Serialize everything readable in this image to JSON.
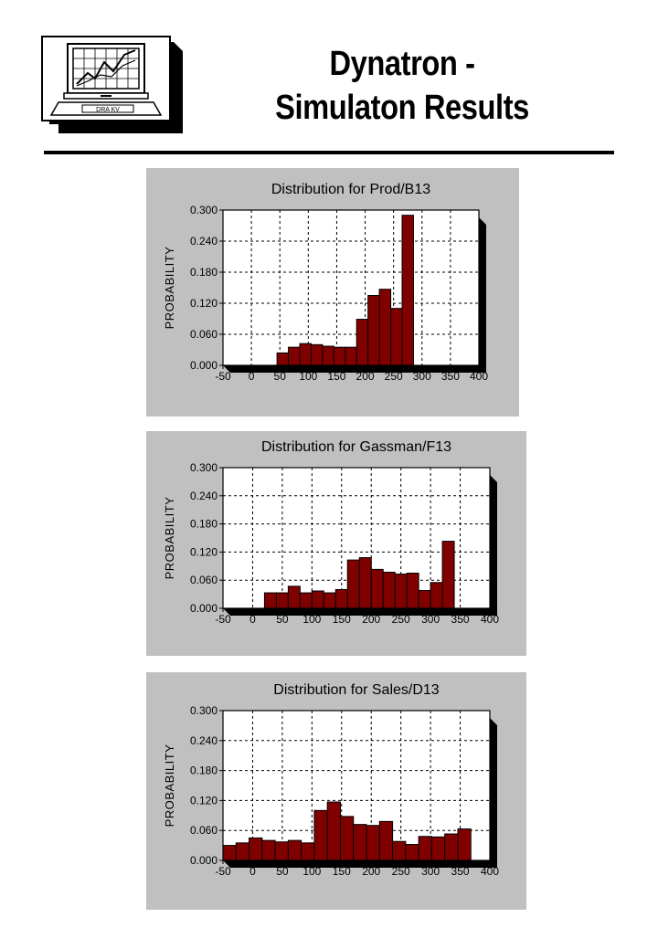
{
  "header": {
    "title_line1": "Dynatron -",
    "title_line2": "Simulaton Results",
    "logo_label": "DRA KV"
  },
  "colors": {
    "bar": "#800000",
    "panel": "#c0c0c0",
    "plot_bg": "#ffffff"
  },
  "chart_data": [
    {
      "type": "bar",
      "title": "Distribution for Prod/B13",
      "ylabel": "PROBABILITY",
      "xlim": [
        -50,
        400
      ],
      "ylim": [
        0,
        0.3
      ],
      "xticks": [
        "-50",
        "0",
        "50",
        "100",
        "150",
        "200",
        "250",
        "300",
        "350",
        "400"
      ],
      "yticks": [
        "0.300",
        "0.240",
        "0.180",
        "0.120",
        "0.060",
        "0.000"
      ],
      "bin_width": 20,
      "x": [
        45,
        65,
        85,
        105,
        125,
        145,
        165,
        185,
        205,
        225,
        245,
        265,
        285,
        305
      ],
      "values": [
        0.024,
        0.035,
        0.042,
        0.04,
        0.037,
        0.035,
        0.035,
        0.089,
        0.135,
        0.147,
        0.11,
        0.29,
        0.0,
        0.0
      ],
      "grid": true
    },
    {
      "type": "bar",
      "title": "Distribution for Gassman/F13",
      "ylabel": "PROBABILITY",
      "xlim": [
        -50,
        400
      ],
      "ylim": [
        0,
        0.3
      ],
      "xticks": [
        "-50",
        "0",
        "50",
        "100",
        "150",
        "200",
        "250",
        "300",
        "350",
        "400"
      ],
      "yticks": [
        "0.300",
        "0.240",
        "0.180",
        "0.120",
        "0.060",
        "0.000"
      ],
      "bin_width": 20,
      "x": [
        20,
        40,
        60,
        80,
        100,
        120,
        140,
        160,
        180,
        200,
        220,
        240,
        260,
        280,
        300,
        320,
        340,
        360
      ],
      "values": [
        0.033,
        0.033,
        0.047,
        0.033,
        0.037,
        0.033,
        0.04,
        0.103,
        0.108,
        0.083,
        0.077,
        0.073,
        0.075,
        0.038,
        0.055,
        0.143,
        0,
        0
      ],
      "grid": true
    },
    {
      "type": "bar",
      "title": "Distribution for Sales/D13",
      "ylabel": "PROBABILITY",
      "xlim": [
        -50,
        400
      ],
      "ylim": [
        0,
        0.3
      ],
      "xticks": [
        "-50",
        "0",
        "50",
        "100",
        "150",
        "200",
        "250",
        "300",
        "350",
        "400"
      ],
      "yticks": [
        "0.300",
        "0.240",
        "0.180",
        "0.120",
        "0.060",
        "0.000"
      ],
      "bin_width": 22,
      "x": [
        -50,
        -28,
        -6,
        16,
        38,
        60,
        82,
        104,
        126,
        148,
        170,
        192,
        214,
        236,
        258,
        280,
        302,
        324,
        346,
        368
      ],
      "values": [
        0.03,
        0.035,
        0.045,
        0.04,
        0.037,
        0.04,
        0.035,
        0.1,
        0.117,
        0.088,
        0.072,
        0.07,
        0.078,
        0.038,
        0.032,
        0.048,
        0.047,
        0.053,
        0.063,
        0
      ],
      "grid": true
    }
  ]
}
